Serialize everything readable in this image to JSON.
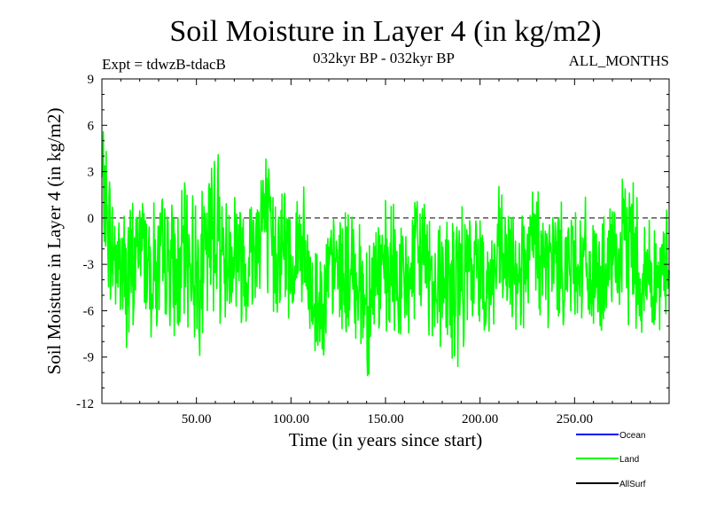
{
  "chart_data": {
    "type": "line",
    "title": "Soil Moisture in Layer 4 (in kg/m2)",
    "subtitle_left": "Expt = tdwzB-tdacB",
    "subtitle_center": "032kyr BP - 032kyr BP",
    "subtitle_right": "ALL_MONTHS",
    "xlabel": "Time (in years since start)",
    "ylabel": "Soil Moisture in Layer 4 (in kg/m2)",
    "xlim": [
      0,
      300
    ],
    "ylim": [
      -12,
      9
    ],
    "xticks": [
      50,
      100,
      150,
      200,
      250
    ],
    "xtick_labels": [
      "50.00",
      "100.00",
      "150.00",
      "200.00",
      "250.00"
    ],
    "yticks": [
      -12,
      -9,
      -6,
      -3,
      0,
      3,
      6,
      9
    ],
    "ytick_labels": [
      "-12",
      "-9",
      "-6",
      "-3",
      "0",
      "3",
      "6",
      "9"
    ],
    "reference_line": 0,
    "grid": false,
    "legend_position": "bottom-right",
    "series": [
      {
        "name": "Ocean",
        "color": "#0000ff",
        "values": []
      },
      {
        "name": "Land",
        "color": "#00ff00",
        "x": [
          0,
          5,
          10,
          15,
          20,
          25,
          30,
          35,
          40,
          45,
          50,
          55,
          60,
          65,
          70,
          75,
          80,
          85,
          90,
          95,
          100,
          105,
          110,
          115,
          120,
          125,
          130,
          135,
          140,
          145,
          150,
          155,
          160,
          165,
          170,
          175,
          180,
          185,
          190,
          195,
          200,
          205,
          210,
          215,
          220,
          225,
          230,
          235,
          240,
          245,
          250,
          255,
          260,
          265,
          270,
          275,
          280,
          285,
          290,
          295,
          300
        ],
        "values": [
          2.5,
          -2.0,
          -3.0,
          -4.5,
          -1.0,
          -3.0,
          -3.5,
          -2.5,
          -4.0,
          -2.0,
          -3.5,
          -3.0,
          0.5,
          -3.0,
          -1.5,
          -3.0,
          -2.0,
          0.5,
          -2.5,
          -1.5,
          -3.0,
          -1.5,
          -5.0,
          -5.5,
          -4.0,
          -3.0,
          -4.0,
          -3.5,
          -5.5,
          -3.5,
          -4.0,
          -3.5,
          -4.5,
          -3.0,
          -2.0,
          -4.0,
          -3.5,
          -5.0,
          -4.0,
          -3.5,
          -3.0,
          -4.5,
          -2.5,
          -3.5,
          -3.0,
          -3.5,
          -1.5,
          -3.5,
          -2.5,
          -3.0,
          -2.5,
          -3.0,
          -4.0,
          -4.0,
          -3.0,
          -2.5,
          -1.0,
          -4.0,
          -3.5,
          -4.5,
          -2.0
        ],
        "amplitudes": [
          3.5,
          3.5,
          3.8,
          4.5,
          3.2,
          3.5,
          4.0,
          3.3,
          3.5,
          3.8,
          4.0,
          4.2,
          5.0,
          3.5,
          3.8,
          3.5,
          3.6,
          4.5,
          3.8,
          3.5,
          3.5,
          3.6,
          3.6,
          3.4,
          3.0,
          3.2,
          3.5,
          3.8,
          4.2,
          3.5,
          3.8,
          3.6,
          3.4,
          3.5,
          3.3,
          3.8,
          4.0,
          4.2,
          3.6,
          3.5,
          3.2,
          3.2,
          3.6,
          3.4,
          3.2,
          3.5,
          3.8,
          3.4,
          3.5,
          3.2,
          3.3,
          3.4,
          3.2,
          3.0,
          3.2,
          3.6,
          4.5,
          3.3,
          3.2,
          3.0,
          3.0
        ]
      },
      {
        "name": "AllSurf",
        "color": "#000000",
        "values": []
      }
    ]
  }
}
